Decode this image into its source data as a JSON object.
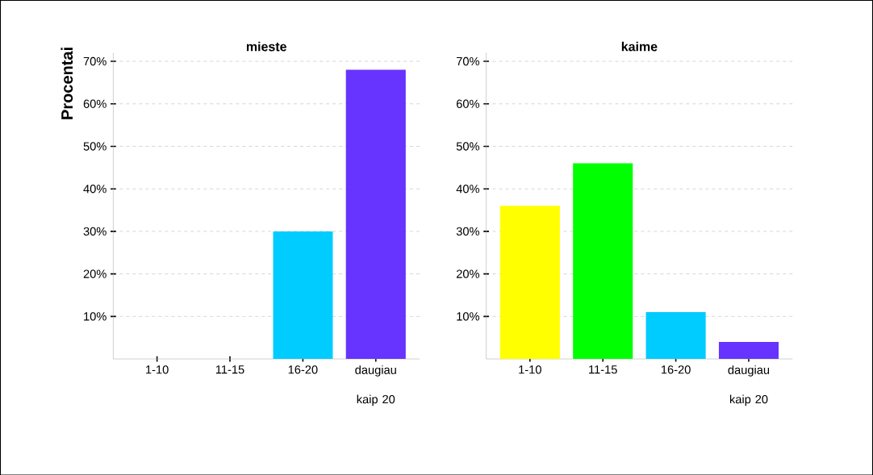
{
  "chart_data": [
    {
      "type": "bar",
      "title": "mieste",
      "ylabel": "Procentai",
      "categories": [
        "1-10",
        "11-15",
        "16-20",
        "daugiau kaip 20"
      ],
      "values": [
        0,
        0,
        30,
        68
      ],
      "colors": [
        "#ffff00",
        "#00ff00",
        "#00ccff",
        "#6633ff"
      ],
      "ylim": [
        0,
        72
      ],
      "yticks": [
        {
          "value": 10,
          "label": "10%"
        },
        {
          "value": 20,
          "label": "20%"
        },
        {
          "value": 30,
          "label": "30%"
        },
        {
          "value": 40,
          "label": "40%"
        },
        {
          "value": 50,
          "label": "50%"
        },
        {
          "value": 60,
          "label": "60%"
        },
        {
          "value": 70,
          "label": "70%"
        }
      ],
      "grid": "y"
    },
    {
      "type": "bar",
      "title": "kaime",
      "categories": [
        "1-10",
        "11-15",
        "16-20",
        "daugiau kaip 20"
      ],
      "values": [
        36,
        46,
        11,
        4
      ],
      "colors": [
        "#ffff00",
        "#00ff00",
        "#00ccff",
        "#6633ff"
      ],
      "ylim": [
        0,
        72
      ],
      "yticks": [
        {
          "value": 10,
          "label": "10%"
        },
        {
          "value": 20,
          "label": "20%"
        },
        {
          "value": 30,
          "label": "30%"
        },
        {
          "value": 40,
          "label": "40%"
        },
        {
          "value": 50,
          "label": "50%"
        },
        {
          "value": 60,
          "label": "60%"
        },
        {
          "value": 70,
          "label": "70%"
        }
      ],
      "grid": "y"
    }
  ]
}
